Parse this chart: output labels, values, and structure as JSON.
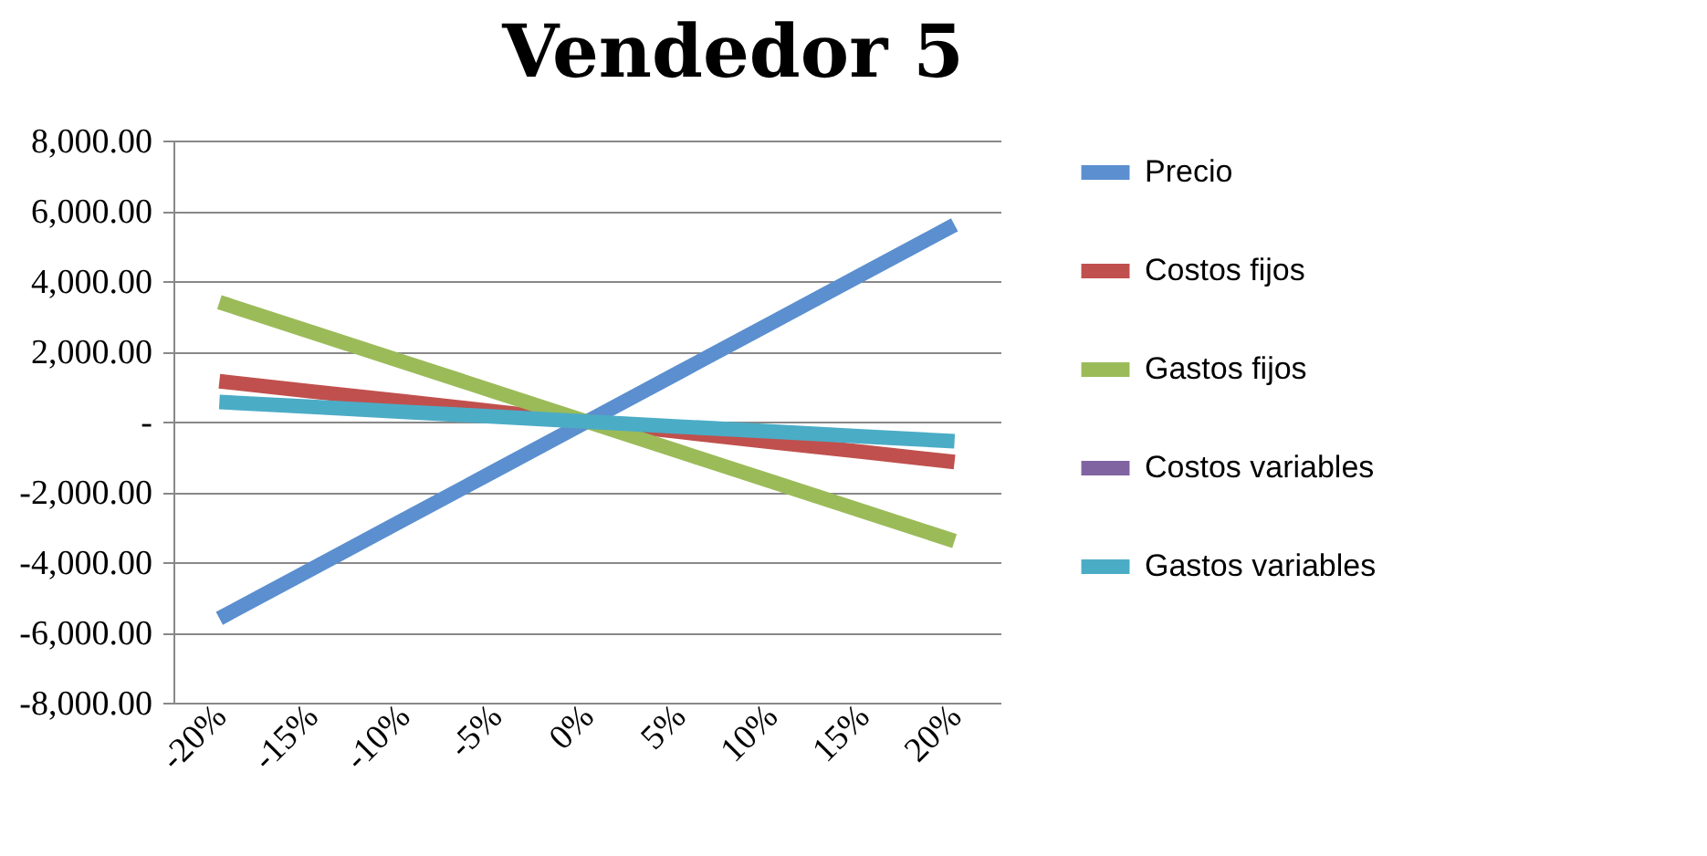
{
  "chart_data": {
    "type": "line",
    "title": "Vendedor 5",
    "categories": [
      "-20%",
      "-15%",
      "-10%",
      "-5%",
      "0%",
      "5%",
      "10%",
      "15%",
      "20%"
    ],
    "series": [
      {
        "name": "Precio",
        "color": "#5b8fcf",
        "values": [
          -5600,
          -4200,
          -2800,
          -1400,
          0,
          1400,
          2800,
          4200,
          5600
        ]
      },
      {
        "name": "Costos fijos",
        "color": "#c0504d",
        "values": [
          1150,
          860,
          580,
          290,
          0,
          -290,
          -580,
          -860,
          -1150
        ]
      },
      {
        "name": "Gastos fijos",
        "color": "#9bbb59",
        "values": [
          3400,
          2550,
          1700,
          850,
          0,
          -850,
          -1700,
          -2550,
          -3400
        ]
      },
      {
        "name": "Costos variables",
        "color": "#8064a2",
        "values": [
          null,
          null,
          null,
          null,
          null,
          null,
          null,
          null,
          null
        ]
      },
      {
        "name": "Gastos variables",
        "color": "#4bacc6",
        "values": [
          560,
          420,
          280,
          140,
          0,
          -140,
          -280,
          -420,
          -560
        ]
      }
    ],
    "ylim": [
      -8000,
      8000
    ],
    "yticks": [
      {
        "value": -8000,
        "label": "-8,000.00"
      },
      {
        "value": -6000,
        "label": "-6,000.00"
      },
      {
        "value": -4000,
        "label": "-4,000.00"
      },
      {
        "value": -2000,
        "label": "-2,000.00"
      },
      {
        "value": 0,
        "label": "-"
      },
      {
        "value": 2000,
        "label": "2,000.00"
      },
      {
        "value": 4000,
        "label": "4,000.00"
      },
      {
        "value": 6000,
        "label": "6,000.00"
      },
      {
        "value": 8000,
        "label": "8,000.00"
      }
    ],
    "grid": "y",
    "legend": "right",
    "marker": "none",
    "line_style": "solid"
  }
}
